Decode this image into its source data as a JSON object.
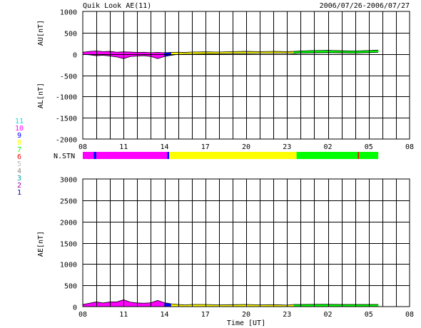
{
  "chart_data": {
    "type": "area",
    "title": "Quik Look AE(11)",
    "date_range": "2006/07/26-2006/07/27",
    "x_ticks": [
      "08",
      "11",
      "14",
      "17",
      "20",
      "23",
      "02",
      "05",
      "08"
    ],
    "xlabel": "Time [UT]",
    "grid": true,
    "station_legend": [
      {
        "label": "11",
        "color": "#00e0e0"
      },
      {
        "label": "10",
        "color": "#ff00ff"
      },
      {
        "label": "9",
        "color": "#0000ff"
      },
      {
        "label": "8",
        "color": "#ffff00"
      },
      {
        "label": "7",
        "color": "#00ff00"
      },
      {
        "label": "6",
        "color": "#ff0000"
      },
      {
        "label": "5",
        "color": "#bbbbbb"
      },
      {
        "label": "4",
        "color": "#888888"
      },
      {
        "label": "3",
        "color": "#00a0a0"
      },
      {
        "label": "2",
        "color": "#a000a0"
      },
      {
        "label": "1",
        "color": "#0000a0"
      }
    ],
    "panels": [
      {
        "id": "au-al",
        "ylabel_top": "AU[nT]",
        "ylabel_bottom": "AL[nT]",
        "ylim": [
          -2000,
          1000
        ],
        "y_ticks": [
          "1000",
          "500",
          "0",
          "-500",
          "-1000",
          "-1500",
          "-2000"
        ],
        "x_hours": [
          8.0,
          8.5,
          9.0,
          9.5,
          10.0,
          10.5,
          11.0,
          11.5,
          12.0,
          12.5,
          13.0,
          13.5,
          14.0,
          14.5,
          15.0,
          15.5,
          16.0,
          17.0,
          18.0,
          19.0,
          20.0,
          21.0,
          22.0,
          23.0,
          23.5,
          24.0,
          25.0,
          26.0,
          27.0,
          28.0,
          29.0,
          29.7
        ],
        "au": [
          40,
          60,
          70,
          55,
          60,
          40,
          50,
          45,
          35,
          40,
          30,
          35,
          30,
          35,
          40,
          35,
          45,
          50,
          45,
          55,
          60,
          55,
          60,
          55,
          60,
          70,
          80,
          85,
          75,
          70,
          80,
          90
        ],
        "al": [
          -10,
          -20,
          -40,
          -30,
          -50,
          -70,
          -110,
          -60,
          -50,
          -40,
          -60,
          -110,
          -60,
          -30,
          -10,
          -5,
          -5,
          0,
          5,
          10,
          10,
          15,
          15,
          20,
          10,
          20,
          25,
          30,
          25,
          20,
          30,
          40
        ]
      },
      {
        "id": "ae",
        "ylabel": "AE[nT]",
        "ylim": [
          0,
          3000
        ],
        "y_ticks": [
          "3000",
          "2500",
          "2000",
          "1500",
          "1000",
          "500",
          "0"
        ],
        "x_hours": [
          8.0,
          8.5,
          9.0,
          9.5,
          10.0,
          10.5,
          11.0,
          11.5,
          12.0,
          12.5,
          13.0,
          13.5,
          14.0,
          14.5,
          15.0,
          15.5,
          16.0,
          17.0,
          18.0,
          19.0,
          20.0,
          21.0,
          22.0,
          23.0,
          23.5,
          24.0,
          25.0,
          26.0,
          27.0,
          28.0,
          29.0,
          29.7
        ],
        "ae": [
          50,
          80,
          110,
          85,
          110,
          110,
          160,
          105,
          85,
          80,
          90,
          145,
          90,
          65,
          50,
          40,
          50,
          50,
          40,
          45,
          50,
          40,
          45,
          35,
          50,
          50,
          55,
          55,
          50,
          50,
          50,
          50
        ]
      }
    ],
    "station_bar": {
      "label": "N.STN",
      "segments": [
        {
          "start": 8.0,
          "end": 8.8,
          "color": "#ff00ff"
        },
        {
          "start": 8.8,
          "end": 9.0,
          "color": "#0000ff"
        },
        {
          "start": 9.0,
          "end": 14.2,
          "color": "#ff00ff"
        },
        {
          "start": 14.2,
          "end": 14.35,
          "color": "#0000ff"
        },
        {
          "start": 14.35,
          "end": 23.7,
          "color": "#ffff00"
        },
        {
          "start": 23.7,
          "end": 28.2,
          "color": "#00ff00"
        },
        {
          "start": 28.2,
          "end": 28.3,
          "color": "#ff0000"
        },
        {
          "start": 28.3,
          "end": 29.7,
          "color": "#00ff00"
        }
      ]
    }
  }
}
